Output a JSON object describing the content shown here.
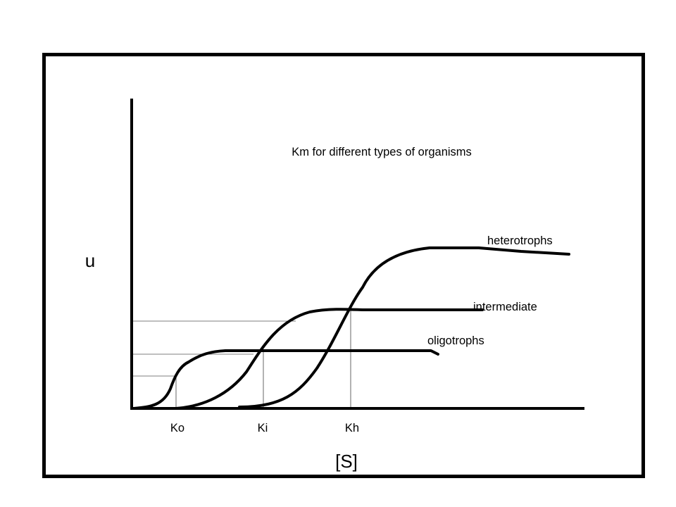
{
  "title": "Km for different types of organisms",
  "y_label": "u",
  "x_label": "[S]",
  "curves": [
    {
      "name": "heterotrophs",
      "label": "heterotrophs"
    },
    {
      "name": "intermediate",
      "label": "intermediate"
    },
    {
      "name": "oligotrophs",
      "label": "oligotrophs"
    }
  ],
  "k_labels": [
    "Ko",
    "Ki",
    "Kh"
  ],
  "colors": {
    "line": "#000000",
    "background": "#ffffff"
  }
}
